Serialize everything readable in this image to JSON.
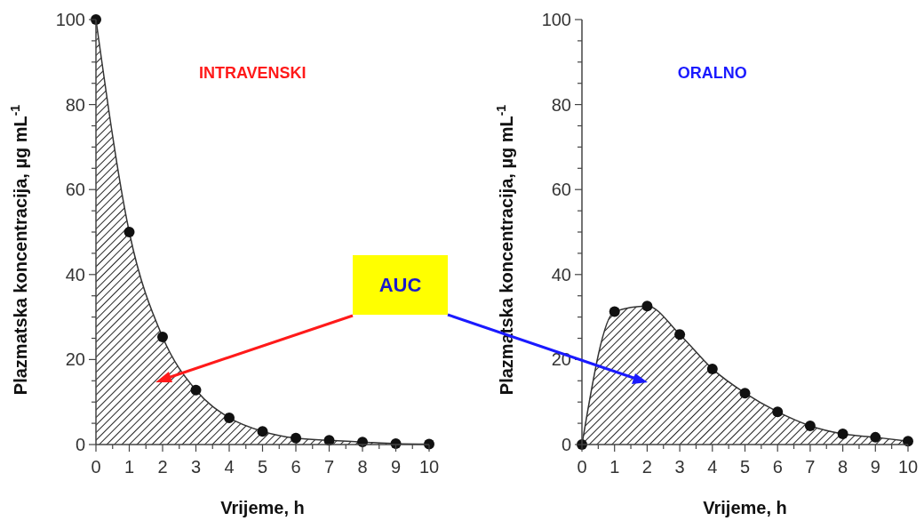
{
  "chart_data": [
    {
      "type": "area",
      "xlabel": "Vrijeme, h",
      "ylabel": "Plazmatska koncentracija, µg mL$^{-1}$",
      "marker": "circle",
      "grid": false,
      "annotations": [
        "INTRAVENSKI",
        "AUC"
      ],
      "x": [
        0,
        1,
        2,
        3,
        4,
        5,
        6,
        7,
        8,
        9,
        10
      ],
      "series": [
        {
          "color": "#333333",
          "values": [
            100,
            50,
            25.3,
            12.8,
            6.3,
            3.1,
            1.5,
            1,
            0.6,
            0.2,
            0.1
          ]
        }
      ],
      "xlim": [
        0,
        10
      ],
      "ylim": [
        0,
        100
      ],
      "xticks": [
        0,
        {
          "value": 0.5,
          "label": null
        },
        1,
        {
          "value": 1.5,
          "label": null
        },
        2,
        {
          "value": 2.5,
          "label": null
        },
        3,
        {
          "value": 3.5,
          "label": null
        },
        4,
        {
          "value": 4.5,
          "label": null
        },
        5,
        {
          "value": 5.5,
          "label": null
        },
        6,
        {
          "value": 6.5,
          "label": null
        },
        7,
        {
          "value": 7.5,
          "label": null
        },
        8,
        {
          "value": 8.5,
          "label": null
        },
        9,
        {
          "value": 9.5,
          "label": null
        },
        10
      ],
      "yticks": [
        0,
        {
          "value": 5,
          "label": null
        },
        {
          "value": 10,
          "label": null
        },
        {
          "value": 15,
          "label": null
        },
        20,
        {
          "value": 25,
          "label": null
        },
        {
          "value": 30,
          "label": null
        },
        {
          "value": 35,
          "label": null
        },
        40,
        {
          "value": 45,
          "label": null
        },
        {
          "value": 50,
          "label": null
        },
        {
          "value": 55,
          "label": null
        },
        60,
        {
          "value": 65,
          "label": null
        },
        {
          "value": 70,
          "label": null
        },
        {
          "value": 75,
          "label": null
        },
        80,
        {
          "value": 85,
          "label": null
        },
        {
          "value": 90,
          "label": null
        },
        {
          "value": 95,
          "label": null
        },
        100
      ]
    },
    {
      "type": "area",
      "xlabel": "Vrijeme, h",
      "ylabel": "Plazmatska koncentracija, µg mL$^{-1}$",
      "marker": "circle",
      "grid": false,
      "annotations": [
        "ORALNO"
      ],
      "x": [
        0,
        1,
        2,
        3,
        4,
        5,
        6,
        7,
        8,
        9,
        10
      ],
      "series": [
        {
          "color": "#333333",
          "values": [
            0,
            31.3,
            32.6,
            25.9,
            17.8,
            12.1,
            7.7,
            4.4,
            2.5,
            1.7,
            0.8
          ]
        }
      ],
      "xlim": [
        0,
        10
      ],
      "ylim": [
        0,
        100
      ],
      "xticks": [
        0,
        {
          "value": 0.5,
          "label": null
        },
        1,
        {
          "value": 1.5,
          "label": null
        },
        2,
        {
          "value": 2.5,
          "label": null
        },
        3,
        {
          "value": 3.5,
          "label": null
        },
        4,
        {
          "value": 4.5,
          "label": null
        },
        5,
        {
          "value": 5.5,
          "label": null
        },
        6,
        {
          "value": 6.5,
          "label": null
        },
        7,
        {
          "value": 7.5,
          "label": null
        },
        8,
        {
          "value": 8.5,
          "label": null
        },
        9,
        {
          "value": 9.5,
          "label": null
        },
        10
      ],
      "yticks": [
        0,
        {
          "value": 5,
          "label": null
        },
        {
          "value": 10,
          "label": null
        },
        {
          "value": 15,
          "label": null
        },
        20,
        {
          "value": 25,
          "label": null
        },
        {
          "value": 30,
          "label": null
        },
        {
          "value": 35,
          "label": null
        },
        40,
        {
          "value": 45,
          "label": null
        },
        {
          "value": 50,
          "label": null
        },
        {
          "value": 55,
          "label": null
        },
        60,
        {
          "value": 65,
          "label": null
        },
        {
          "value": 70,
          "label": null
        },
        {
          "value": 75,
          "label": null
        },
        80,
        {
          "value": 85,
          "label": null
        },
        {
          "value": 90,
          "label": null
        },
        {
          "value": 95,
          "label": null
        },
        100
      ]
    }
  ]
}
